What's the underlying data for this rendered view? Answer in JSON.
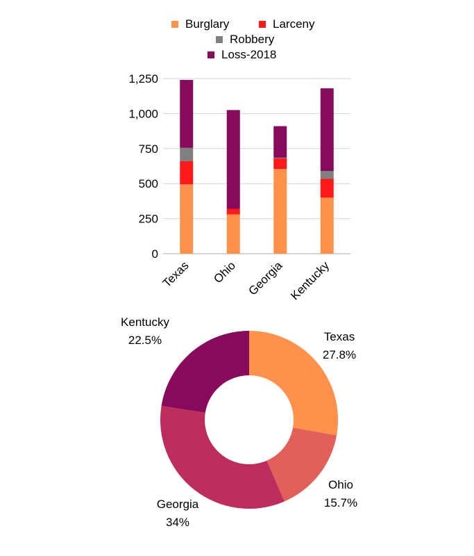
{
  "chart_data": [
    {
      "type": "bar",
      "stacked": true,
      "categories": [
        "Texas",
        "Ohio",
        "Georgia",
        "Kentucky"
      ],
      "series": [
        {
          "name": "Burglary",
          "color": "#FF914D",
          "values": [
            495,
            280,
            605,
            400
          ]
        },
        {
          "name": "Larceny",
          "color": "#FF1A1A",
          "values": [
            165,
            40,
            75,
            135
          ]
        },
        {
          "name": "Robbery",
          "color": "#7F7F7F",
          "values": [
            95,
            0,
            5,
            55
          ]
        },
        {
          "name": "Loss-2018",
          "color": "#870A5C",
          "values": [
            485,
            705,
            225,
            590
          ]
        }
      ],
      "ylim": [
        0,
        1250
      ],
      "yticks": [
        "0",
        "250",
        "500",
        "750",
        "1,000",
        "1,250"
      ],
      "grid": true,
      "legend_position": "top"
    },
    {
      "type": "pie",
      "donut": true,
      "slices": [
        {
          "label": "Texas",
          "value": 27.8,
          "percent": "27.8%",
          "color": "#FF914D"
        },
        {
          "label": "Ohio",
          "value": 15.7,
          "percent": "15.7%",
          "color": "#E35F5A"
        },
        {
          "label": "Georgia",
          "value": 34,
          "percent": "34%",
          "color": "#BD2D5C"
        },
        {
          "label": "Kentucky",
          "value": 22.5,
          "percent": "22.5%",
          "color": "#870A5C"
        }
      ]
    }
  ]
}
